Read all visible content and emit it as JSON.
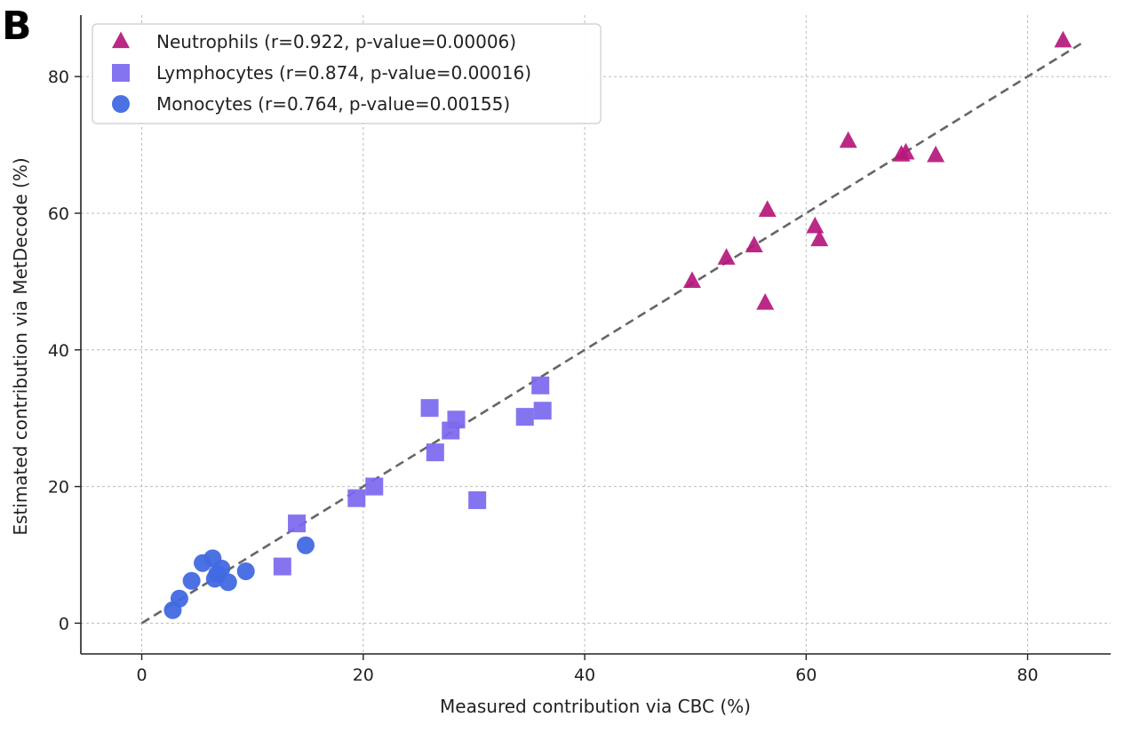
{
  "panel_label": "B",
  "chart_data": {
    "type": "scatter",
    "xlabel": "Measured contribution via CBC (%)",
    "ylabel": "Estimated contribution via MetDecode (%)",
    "xlim": [
      -5.5,
      87.5
    ],
    "ylim": [
      -4.5,
      89
    ],
    "xticks": [
      0,
      20,
      40,
      60,
      80
    ],
    "yticks": [
      0,
      20,
      40,
      60,
      80
    ],
    "xtick_labels": [
      "0",
      "20",
      "40",
      "60",
      "80"
    ],
    "ytick_labels": [
      "0",
      "20",
      "40",
      "60",
      "80"
    ],
    "grid": true,
    "legend_position": "top-left",
    "reference_line": {
      "style": "dashed",
      "color": "#666666",
      "from": [
        0,
        0
      ],
      "to": [
        85,
        85
      ]
    },
    "series": [
      {
        "name": "Neutrophils (r=0.922, p-value=0.00006)",
        "marker": "triangle",
        "color": "#b5177c",
        "points": [
          [
            83.2,
            85.2
          ],
          [
            71.7,
            68.4
          ],
          [
            69.0,
            68.8
          ],
          [
            68.6,
            68.5
          ],
          [
            63.8,
            70.5
          ],
          [
            61.2,
            56.1
          ],
          [
            60.8,
            58.0
          ],
          [
            56.5,
            60.4
          ],
          [
            56.3,
            46.8
          ],
          [
            55.3,
            55.2
          ],
          [
            52.8,
            53.4
          ],
          [
            49.7,
            50.0
          ]
        ]
      },
      {
        "name": "Lymphocytes (r=0.874, p-value=0.00016)",
        "marker": "square",
        "color": "#7b68ee",
        "points": [
          [
            36.0,
            34.8
          ],
          [
            36.2,
            31.1
          ],
          [
            34.6,
            30.2
          ],
          [
            30.3,
            18.0
          ],
          [
            28.4,
            29.8
          ],
          [
            27.9,
            28.2
          ],
          [
            26.5,
            25.0
          ],
          [
            26.0,
            31.5
          ],
          [
            21.0,
            20.0
          ],
          [
            19.4,
            18.3
          ],
          [
            14.0,
            14.6
          ],
          [
            12.7,
            8.3
          ]
        ]
      },
      {
        "name": "Monocytes (r=0.764, p-value=0.00155)",
        "marker": "circle",
        "color": "#4169e1",
        "points": [
          [
            14.8,
            11.4
          ],
          [
            9.4,
            7.6
          ],
          [
            7.8,
            6.0
          ],
          [
            7.2,
            8.0
          ],
          [
            6.8,
            7.2
          ],
          [
            6.4,
            9.5
          ],
          [
            5.5,
            8.8
          ],
          [
            6.6,
            6.5
          ],
          [
            4.5,
            6.2
          ],
          [
            3.4,
            3.6
          ],
          [
            2.8,
            1.9
          ]
        ]
      }
    ]
  }
}
